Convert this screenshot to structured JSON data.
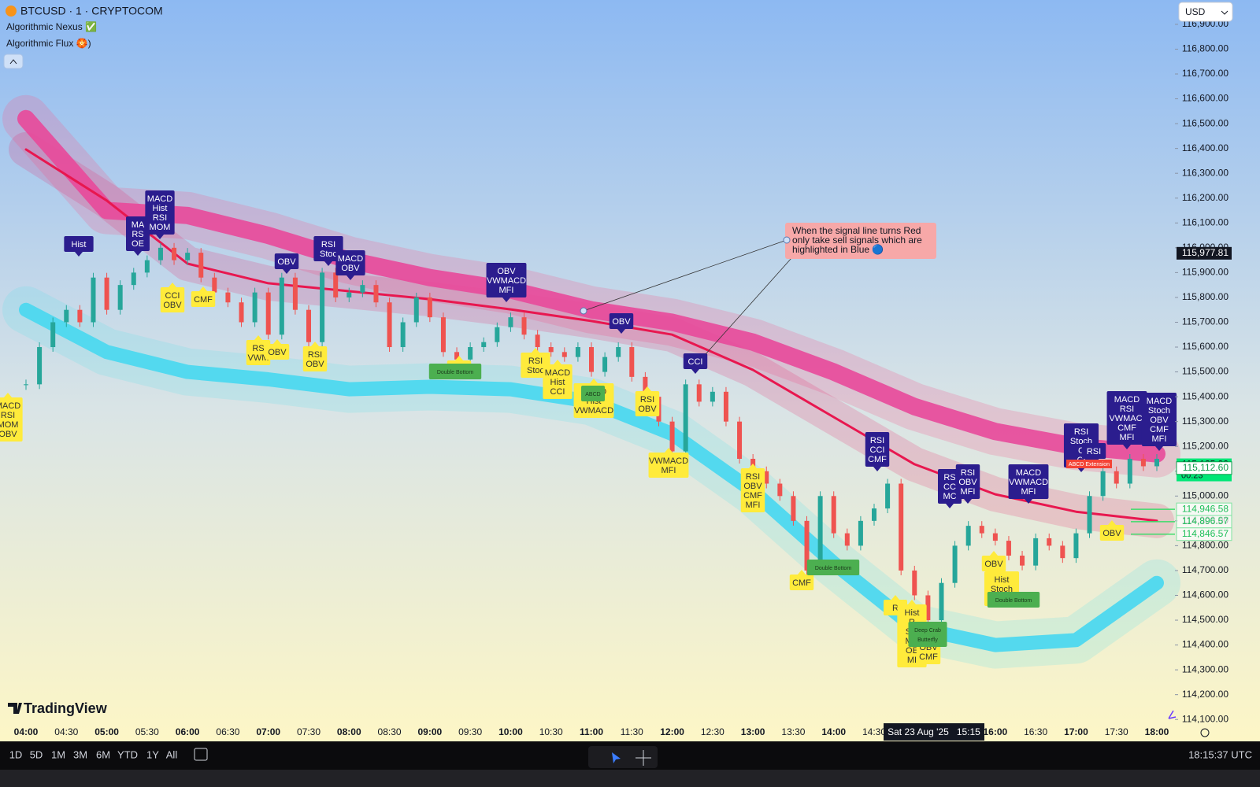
{
  "header": {
    "symbol": "BTCUSD · 1 · CRYPTOCOM",
    "currency": "USD",
    "indicators": [
      "Algorithmic Nexus ✅",
      "Algorithmic Flux 🏵️)"
    ]
  },
  "chart": {
    "ylim": [
      114088,
      116998
    ],
    "yticks": [
      {
        "value": 114100,
        "label": "114,100.00"
      },
      {
        "value": 114200,
        "label": "114,200.00"
      },
      {
        "value": 114300,
        "label": "114,300.00"
      },
      {
        "value": 114400,
        "label": "114,400.00"
      },
      {
        "value": 114500,
        "label": "114,500.00"
      },
      {
        "value": 114600,
        "label": "114,600.00"
      },
      {
        "value": 114700,
        "label": "114,700.00"
      },
      {
        "value": 114800,
        "label": "114,800.00"
      },
      {
        "value": 114900,
        "label": "114,900.00"
      },
      {
        "value": 115000,
        "label": "115,000.00"
      },
      {
        "value": 115100,
        "label": "115,100.00"
      },
      {
        "value": 115200,
        "label": "115,200.00"
      },
      {
        "value": 115300,
        "label": "115,300.00"
      },
      {
        "value": 115400,
        "label": "115,400.00"
      },
      {
        "value": 115500,
        "label": "115,500.00"
      },
      {
        "value": 115600,
        "label": "115,600.00"
      },
      {
        "value": 115700,
        "label": "115,700.00"
      },
      {
        "value": 115800,
        "label": "115,800.00"
      },
      {
        "value": 115900,
        "label": "115,900.00"
      },
      {
        "value": 116000,
        "label": "116,000.00"
      },
      {
        "value": 116100,
        "label": "116,100.00"
      },
      {
        "value": 116200,
        "label": "116,200.00"
      },
      {
        "value": 116300,
        "label": "116,300.00"
      },
      {
        "value": 116400,
        "label": "116,400.00"
      },
      {
        "value": 116500,
        "label": "116,500.00"
      },
      {
        "value": 116600,
        "label": "116,600.00"
      },
      {
        "value": 116700,
        "label": "116,700.00"
      },
      {
        "value": 116800,
        "label": "116,800.00"
      },
      {
        "value": 116900,
        "label": "116,900.00"
      }
    ],
    "time_labels": [
      "04:00",
      "04:30",
      "05:00",
      "05:30",
      "06:00",
      "06:30",
      "07:00",
      "07:30",
      "08:00",
      "08:30",
      "09:00",
      "09:30",
      "10:00",
      "10:30",
      "11:00",
      "11:30",
      "12:00",
      "12:30",
      "13:00",
      "13:30",
      "14:00",
      "14:30",
      null,
      null,
      "16:00",
      "16:30",
      "17:00",
      "17:30",
      "18:00"
    ],
    "crosshair_label": "Sat 23 Aug '25   15:15",
    "closes": [
      115450,
      115600,
      115700,
      115750,
      115700,
      115880,
      115750,
      115850,
      115900,
      115950,
      116000,
      115950,
      115980,
      115880,
      115820,
      115780,
      115700,
      115820,
      115650,
      115880,
      115750,
      115620,
      115900,
      115800,
      115820,
      115850,
      115780,
      115600,
      115700,
      115800,
      115720,
      115580,
      115550,
      115600,
      115620,
      115680,
      115720,
      115650,
      115600,
      115580,
      115560,
      115600,
      115500,
      115560,
      115600,
      115480,
      115400,
      115300,
      115180,
      115450,
      115380,
      115420,
      115300,
      115150,
      115100,
      115050,
      115000,
      114900,
      114700,
      115000,
      114850,
      114800,
      114900,
      114950,
      115050,
      114700,
      114600,
      114500,
      114650,
      114800,
      114880,
      114850,
      114820,
      114760,
      114720,
      114830,
      114800,
      114750,
      114850,
      115000,
      115100,
      115050,
      115150,
      115120,
      115150
    ],
    "signal_line": [
      116396,
      116190,
      115936,
      115857,
      115825,
      115793,
      115752,
      115705,
      115650,
      115508,
      115318,
      115128,
      115007,
      114937,
      114900
    ],
    "upper_band": [
      116520,
      116150,
      116130,
      116050,
      115950,
      115880,
      115830,
      115750,
      115700,
      115620,
      115500,
      115360,
      115260,
      115200,
      115170
    ],
    "lower_band": [
      115750,
      115580,
      115500,
      115470,
      115430,
      115440,
      115430,
      115380,
      115250,
      115020,
      114730,
      114470,
      114400,
      114420,
      114650
    ],
    "price_labels": [
      {
        "value": 115977.81,
        "label": "115,977.81"
      },
      {
        "value": 115125.99,
        "label": "115,125.99"
      },
      {
        "value": 115112.6,
        "label": "115,112.60"
      }
    ],
    "countdown": "00:23",
    "levels": [
      {
        "value": 114946.58,
        "label": "114,946.58"
      },
      {
        "value": 114896.57,
        "label": "114,896.57"
      },
      {
        "value": 114846.57,
        "label": "114,846.57"
      }
    ],
    "annotation": [
      "When the signal line turns Red",
      "only take sell signals which are",
      "highlighted in Blue 🔵"
    ],
    "blue_signals": [
      [
        "Hist"
      ],
      [
        "MA",
        "RS",
        "OE"
      ],
      [
        "MACD",
        "Hist",
        "RSI",
        "MOM"
      ],
      [
        "OBV"
      ],
      [
        "RSI",
        "Stoc"
      ],
      [
        "MACD",
        "OBV"
      ],
      [
        "OBV",
        "VWMACD",
        "MFI"
      ],
      [
        "OBV"
      ],
      [
        "CCI"
      ],
      [
        "RSI",
        "CCI",
        "CMF"
      ],
      [
        "RS",
        "CC",
        "MC"
      ],
      [
        "RSI",
        "OBV",
        "MFI"
      ],
      [
        "MACD",
        "VWMACD",
        "MFI"
      ],
      [
        "RSI",
        "Stoch",
        "C",
        "CI"
      ],
      [
        "RSI"
      ],
      [
        "MACD",
        "RSI",
        "VWMACI",
        "CMF",
        "MFI"
      ],
      [
        "MACD",
        "Stoch",
        "OBV",
        "CMF",
        "MFI"
      ]
    ],
    "yellow_signals": [
      [
        "MACD",
        "RSI",
        "MOM",
        "OBV"
      ],
      [
        "CCI",
        "OBV"
      ],
      [
        "CMF"
      ],
      [
        "RS",
        "VWM"
      ],
      [
        "OBV"
      ],
      [
        "RSI",
        "OBV"
      ],
      [
        "OBV"
      ],
      [
        "RSI",
        "Stoc"
      ],
      [
        "MACD",
        "Hist",
        "CCI"
      ],
      [
        "MACD",
        "Hist",
        "VWMACD"
      ],
      [
        "RSI",
        "OBV"
      ],
      [
        "VWMACD",
        "MFI"
      ],
      [
        "RSI",
        "OBV",
        "CMF",
        "MFI"
      ],
      [
        "CMF"
      ],
      [
        "R"
      ],
      [
        "Hist",
        "R",
        "Sto",
        "MC",
        "OE",
        "MI"
      ],
      [
        "CCI",
        "OBV",
        "CMF"
      ],
      [
        "OBV"
      ],
      [
        "Hist",
        "Stoch",
        "CCI"
      ],
      [
        "OBV"
      ]
    ],
    "patterns": [
      [
        "Double Bottom"
      ],
      [
        "ABCD"
      ],
      [
        "Double Bottom"
      ],
      [
        "Double Bottom"
      ],
      [
        "Deep Crab",
        "Butterfly"
      ]
    ],
    "alert_pattern": "ABCD Extension"
  },
  "footer": {
    "brand": "TradingView",
    "ranges": [
      "1D",
      "5D",
      "1M",
      "3M",
      "6M",
      "YTD",
      "1Y",
      "All"
    ],
    "clock": "18:15:37 UTC"
  }
}
